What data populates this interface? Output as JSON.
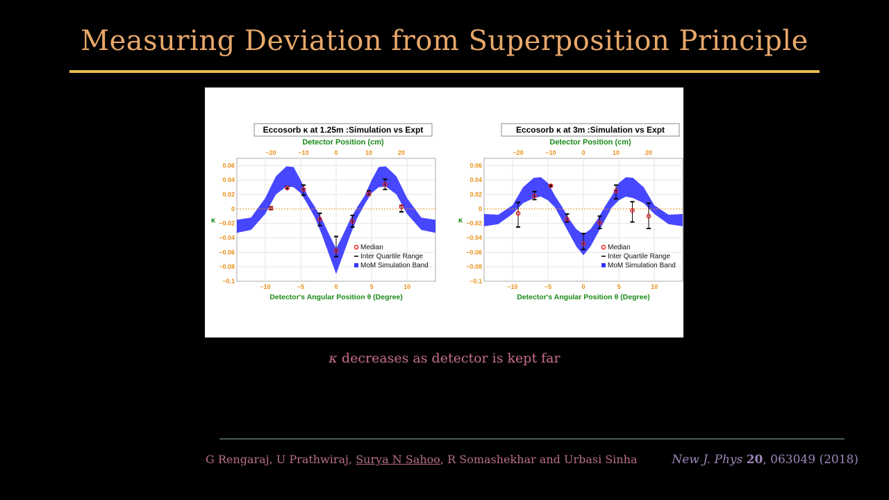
{
  "slide": {
    "title": "Measuring Deviation from Superposition Principle",
    "caption_symbol": "κ",
    "caption_text": " decreases as detector is kept far"
  },
  "footer": {
    "authors_before": "G Rengaraj, U Prathwiraj, ",
    "authors_highlight": "Surya N Sahoo",
    "authors_after": ", R Somashekhar and Urbasi Sinha",
    "journal_name": "New J. Phys",
    "journal_volume": "20",
    "journal_rest": ", 063049 (2018)"
  },
  "colors": {
    "title": "#e8a86a",
    "rule": "#e9bc4e",
    "caption": "#c8708a",
    "band": "#3333ff",
    "median": "#e82020",
    "axis_ticks": "#e8901a",
    "axis_label": "#1a8a1a"
  },
  "chart_data": [
    {
      "type": "scatter",
      "title": "Eccosorb  κ at 1.25m :Simulation vs Expt",
      "top_axis_label": "Detector Position (cm)",
      "top_ticks": [
        "−20",
        "−10",
        "0",
        "10",
        "20"
      ],
      "xlabel": "Detector's Angular Position θ (Degree)",
      "ylabel": "κ",
      "xlim": [
        -14,
        14
      ],
      "ylim": [
        -0.1,
        0.07
      ],
      "x_ticks": [
        "−10",
        "−5",
        "0",
        "5",
        "10"
      ],
      "y_ticks": [
        "0.06",
        "0.04",
        "0.02",
        "0",
        "−0.02",
        "−0.04",
        "−0.06",
        "−0.08",
        "−0.1"
      ],
      "legend": [
        "Median",
        "Inter Quartile Range",
        "MoM Simulation Band"
      ],
      "medians": {
        "x": [
          -9.2,
          -6.9,
          -4.6,
          -2.3,
          0,
          2.3,
          4.6,
          6.9,
          9.2
        ],
        "y": [
          0.001,
          0.029,
          0.027,
          -0.014,
          -0.058,
          -0.017,
          0.021,
          0.034,
          0.003
        ],
        "iqr_low": [
          -0.001,
          0.028,
          0.019,
          -0.023,
          -0.066,
          -0.025,
          0.019,
          0.027,
          -0.004
        ],
        "iqr_high": [
          0.003,
          0.031,
          0.033,
          -0.006,
          -0.038,
          -0.009,
          0.025,
          0.041,
          0.005
        ]
      },
      "band": {
        "x": [
          -14,
          -12,
          -10,
          -8.5,
          -7,
          -6,
          -5,
          -4,
          -3,
          -2,
          -1,
          0,
          1,
          2,
          3,
          4,
          5,
          6,
          7,
          8.5,
          10,
          12,
          14
        ],
        "upper": [
          -0.015,
          -0.012,
          0.015,
          0.045,
          0.059,
          0.058,
          0.04,
          0.018,
          0.003,
          -0.014,
          -0.035,
          -0.055,
          -0.035,
          -0.014,
          0.003,
          0.018,
          0.04,
          0.058,
          0.059,
          0.045,
          0.015,
          -0.012,
          -0.015
        ],
        "lower": [
          -0.033,
          -0.029,
          -0.007,
          0.02,
          0.031,
          0.03,
          0.022,
          0.006,
          -0.012,
          -0.036,
          -0.063,
          -0.09,
          -0.063,
          -0.036,
          -0.012,
          0.006,
          0.022,
          0.03,
          0.031,
          0.02,
          -0.007,
          -0.029,
          -0.033
        ]
      }
    },
    {
      "type": "scatter",
      "title": "Eccosorb  κ at 3m :Simulation vs Expt",
      "top_axis_label": "Detector Position (cm)",
      "top_ticks": [
        "−20",
        "−10",
        "0",
        "10",
        "20"
      ],
      "xlabel": "Detector's Angular Position θ (Degree)",
      "ylabel": "κ",
      "xlim": [
        -14,
        14
      ],
      "ylim": [
        -0.1,
        0.07
      ],
      "x_ticks": [
        "−10",
        "−5",
        "0",
        "5",
        "10"
      ],
      "y_ticks": [
        "0.06",
        "0.04",
        "0.02",
        "0",
        "−0.02",
        "−0.04",
        "−0.06",
        "−0.08",
        "−0.1"
      ],
      "legend": [
        "Median",
        "Inter Quartile Range",
        "MoM Simulation Band"
      ],
      "medians": {
        "x": [
          -9.2,
          -6.9,
          -4.6,
          -2.3,
          0,
          2.3,
          4.6,
          6.9,
          9.2
        ],
        "y": [
          -0.006,
          0.018,
          0.032,
          -0.014,
          -0.048,
          -0.019,
          0.025,
          -0.002,
          -0.01
        ],
        "iqr_low": [
          -0.025,
          0.013,
          0.031,
          -0.018,
          -0.056,
          -0.027,
          0.014,
          -0.018,
          -0.027
        ],
        "iqr_high": [
          0.009,
          0.024,
          0.033,
          -0.007,
          -0.034,
          -0.01,
          0.033,
          0.01,
          0.008
        ]
      },
      "band": {
        "x": [
          -14,
          -12,
          -10,
          -8.5,
          -7,
          -6,
          -5,
          -4,
          -3,
          -2,
          -1,
          0,
          1,
          2,
          3,
          4,
          5,
          6,
          7,
          8.5,
          10,
          12,
          14
        ],
        "upper": [
          -0.007,
          -0.008,
          0.005,
          0.03,
          0.043,
          0.044,
          0.036,
          0.018,
          0.003,
          -0.014,
          -0.028,
          -0.035,
          -0.028,
          -0.014,
          0.003,
          0.018,
          0.036,
          0.044,
          0.043,
          0.03,
          0.005,
          -0.008,
          -0.007
        ],
        "lower": [
          -0.024,
          -0.021,
          -0.007,
          0.008,
          0.015,
          0.017,
          0.012,
          0.002,
          -0.016,
          -0.034,
          -0.052,
          -0.064,
          -0.052,
          -0.034,
          -0.016,
          0.002,
          0.012,
          0.017,
          0.015,
          0.008,
          -0.007,
          -0.021,
          -0.024
        ]
      }
    }
  ]
}
